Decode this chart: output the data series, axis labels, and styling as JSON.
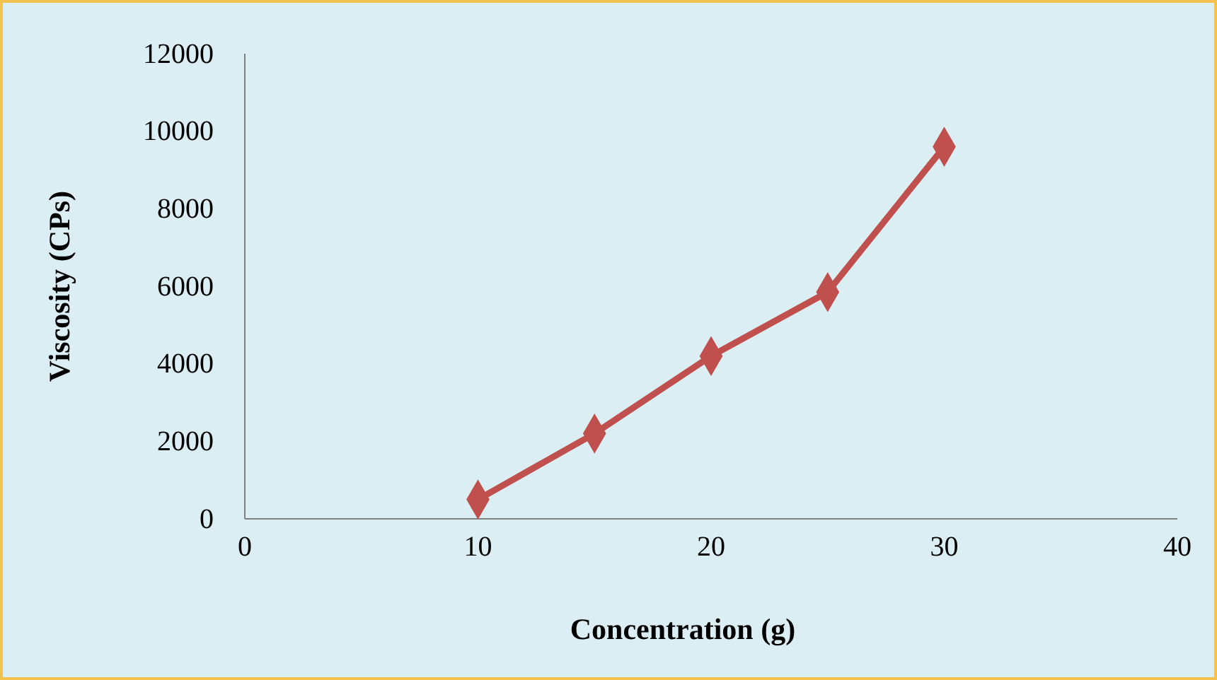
{
  "chart_data": {
    "type": "line",
    "xlabel": "Concentration (g)",
    "ylabel": "Viscosity (CPs)",
    "x": [
      10,
      15,
      20,
      25,
      30
    ],
    "series": [
      {
        "color": "#c0504d",
        "values": [
          500,
          2200,
          4200,
          5850,
          9600
        ]
      }
    ],
    "xlim": [
      0,
      40
    ],
    "xticks": [
      0,
      10,
      20,
      30,
      40
    ],
    "ylim": [
      0,
      12000
    ],
    "yticks": [
      0,
      2000,
      4000,
      6000,
      8000,
      10000,
      12000
    ],
    "marker": "diamond",
    "line_style": "solid",
    "grid": false
  }
}
